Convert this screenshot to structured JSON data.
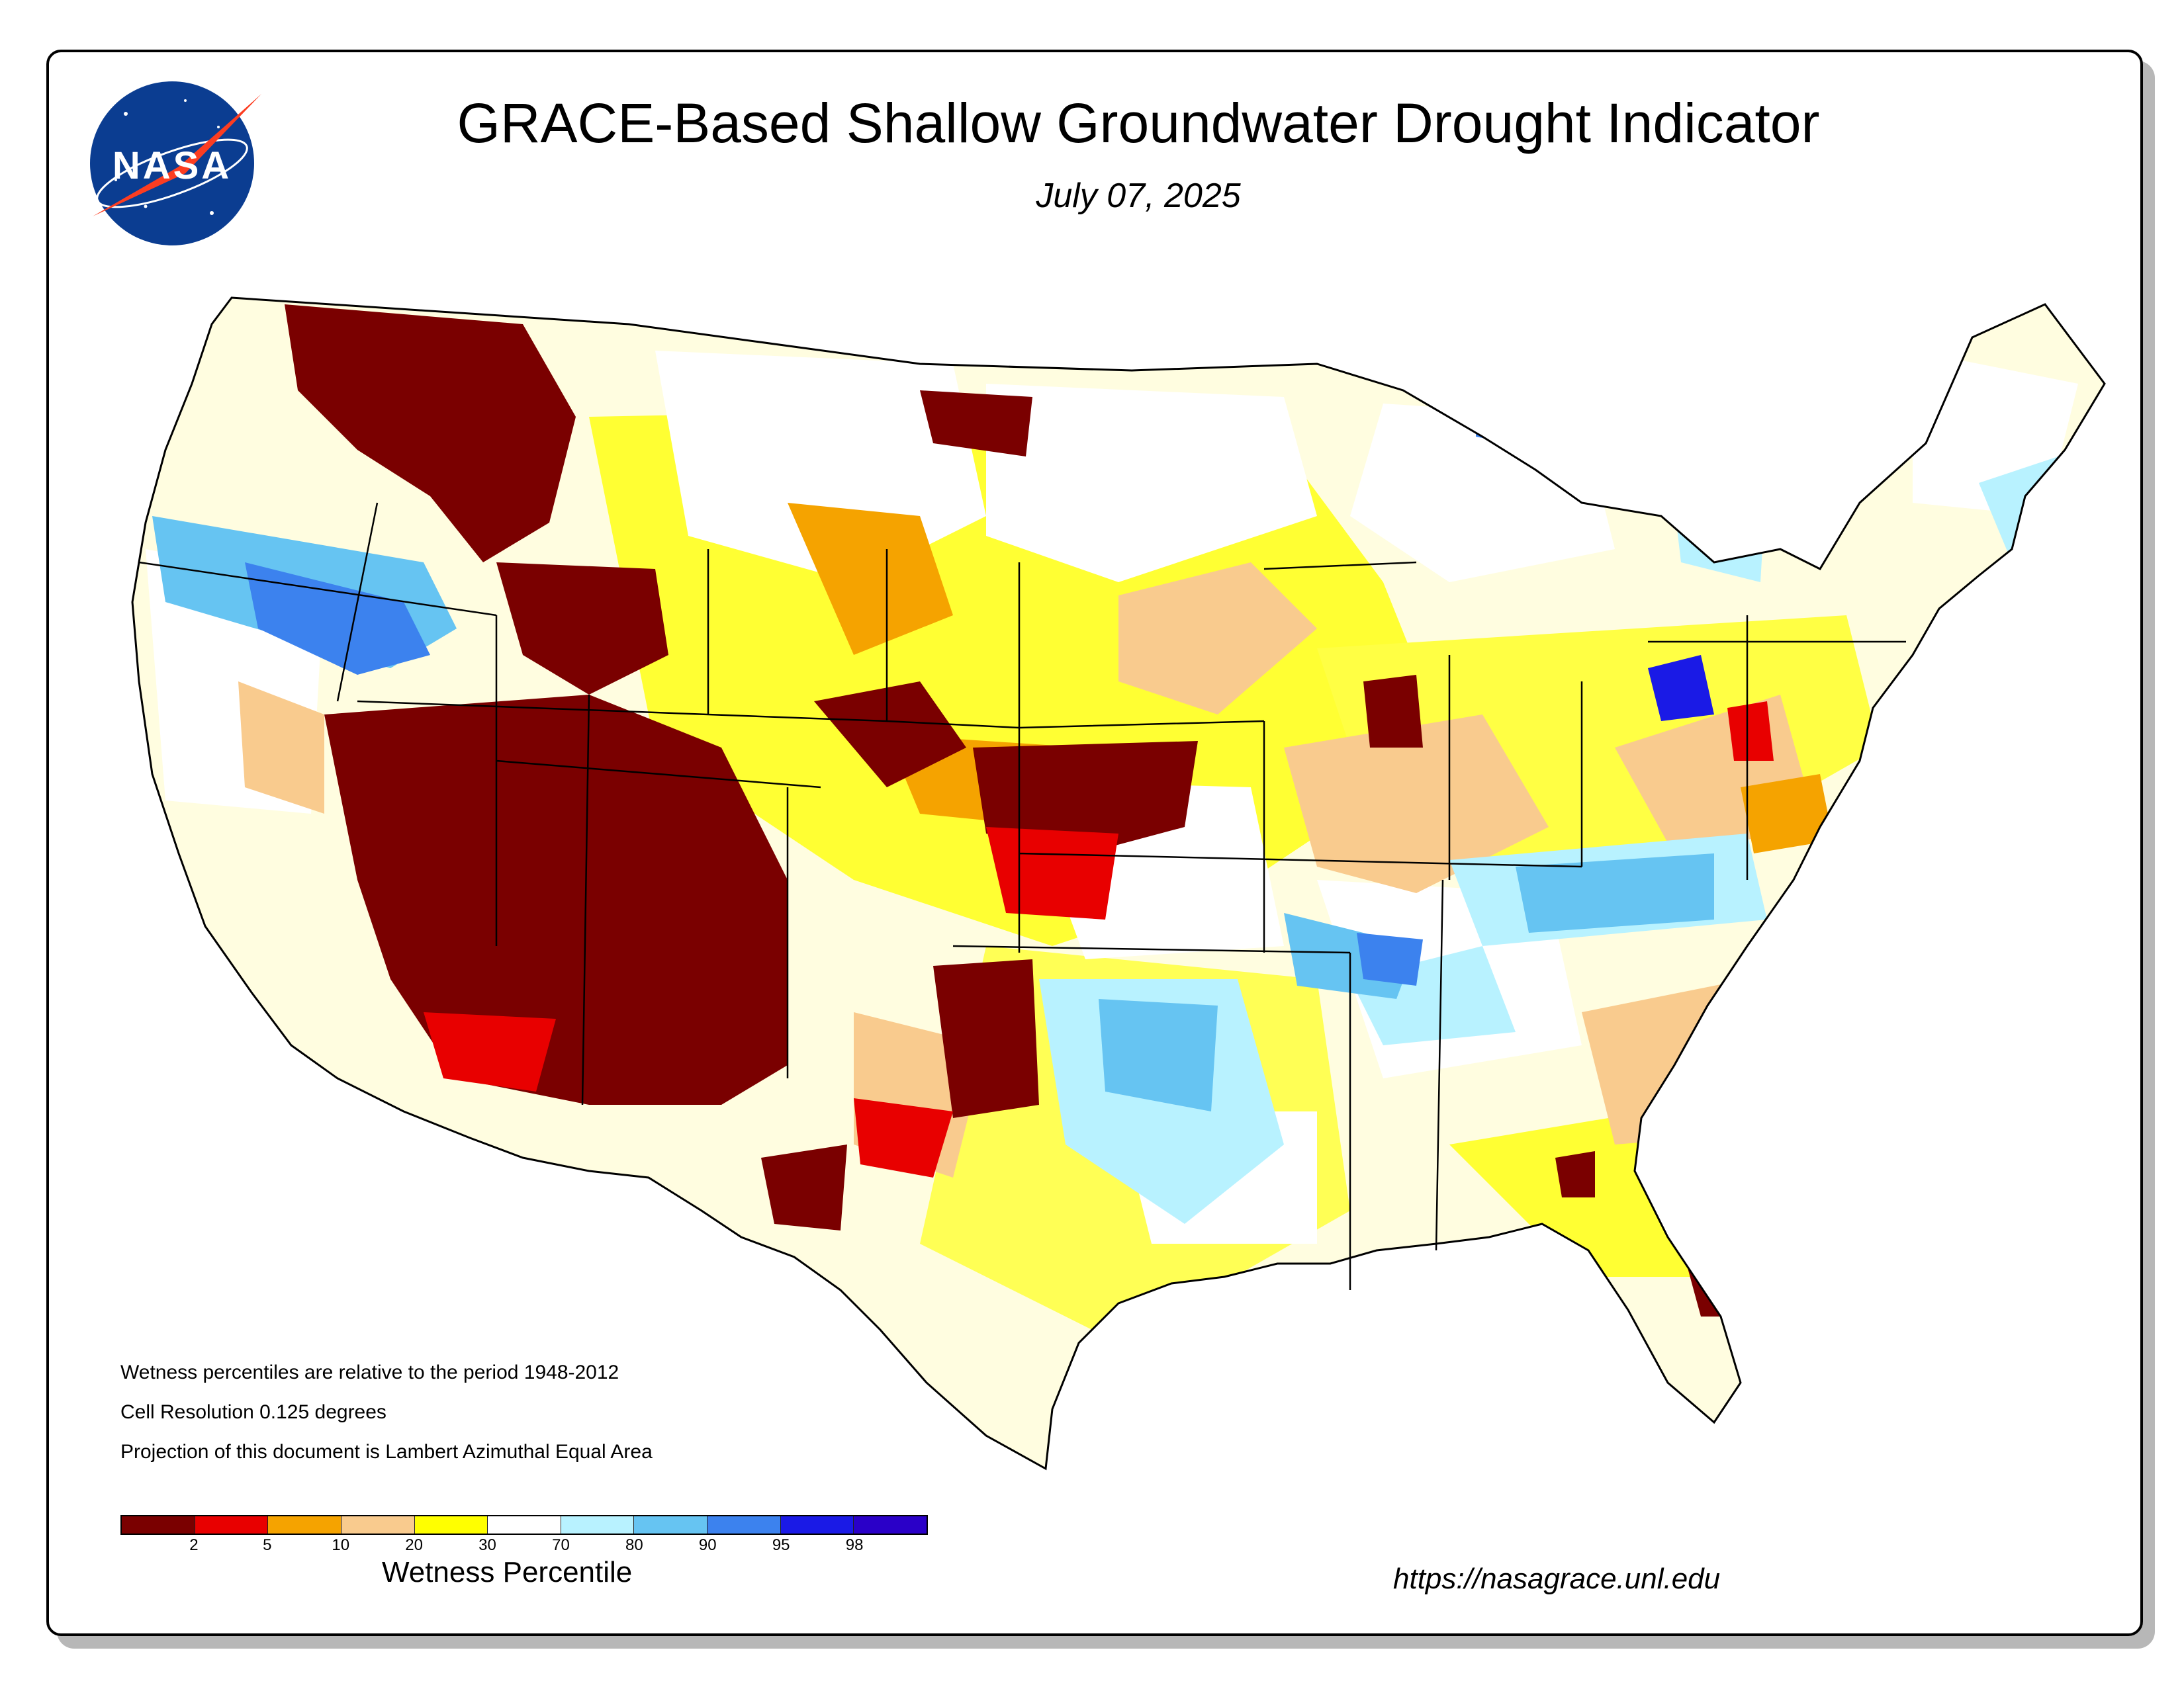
{
  "title": "GRACE-Based Shallow Groundwater Drought Indicator",
  "date": "July 07, 2025",
  "logo_text": "NASA",
  "notes": [
    "Wetness percentiles are relative to the period 1948-2012",
    "Cell Resolution 0.125 degrees",
    "Projection of this document is Lambert Azimuthal Equal Area"
  ],
  "legend": {
    "title": "Wetness Percentile",
    "ticks": [
      "2",
      "5",
      "10",
      "20",
      "30",
      "70",
      "80",
      "90",
      "95",
      "98"
    ],
    "colors": [
      "#7a0000",
      "#e80000",
      "#f5a300",
      "#f9cb8e",
      "#ffff00",
      "#ffffff",
      "#b8f2ff",
      "#66c4f2",
      "#3c82ee",
      "#1a1ae6",
      "#2a00c8"
    ]
  },
  "url": "https://nasagrace.unl.edu"
}
